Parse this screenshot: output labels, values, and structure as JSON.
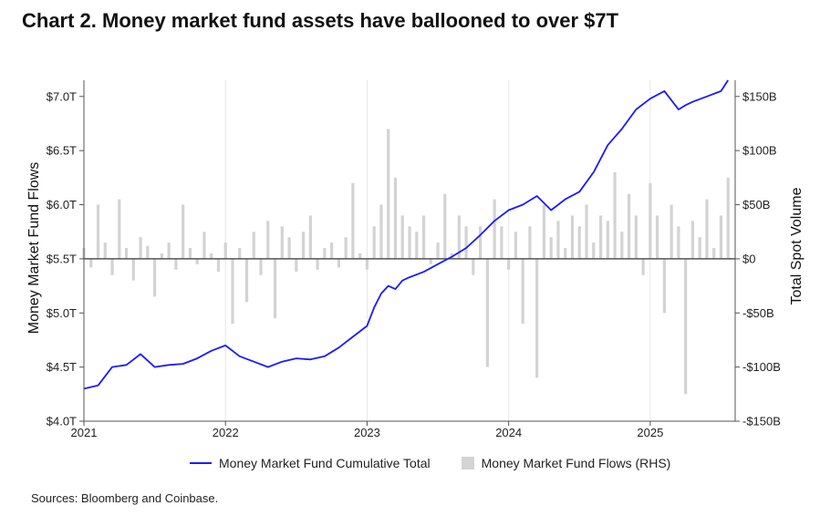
{
  "title": "Chart 2. Money market fund assets have ballooned to over $7T",
  "source": "Sources: Bloomberg and Coinbase.",
  "colors": {
    "line": "#1a1aff",
    "bars": "#d3d3d3",
    "zero_line": "#555555",
    "grid": "#e6e6e6"
  },
  "chart_data": {
    "type": "line+bar",
    "title": "Chart 2. Money market fund assets have ballooned to over $7T",
    "xlabel": "",
    "ylabel_left": "Money Market Fund Flows",
    "ylabel_right": "Total Spot Volume",
    "x_range": [
      2021.0,
      2025.6
    ],
    "x_ticks": [
      2021,
      2022,
      2023,
      2024,
      2025
    ],
    "x_tick_labels": [
      "2021",
      "2022",
      "2023",
      "2024",
      "2025"
    ],
    "y_left_range": [
      4.0,
      7.15
    ],
    "y_left_ticks": [
      4.0,
      4.5,
      5.0,
      5.5,
      6.0,
      6.5,
      7.0
    ],
    "y_left_tick_labels": [
      "$4.0T",
      "$4.5T",
      "$5.0T",
      "$5.5T",
      "$6.0T",
      "$6.5T",
      "$7.0T"
    ],
    "y_right_range": [
      -150,
      165
    ],
    "y_right_ticks": [
      -150,
      -100,
      -50,
      0,
      50,
      100,
      150
    ],
    "y_right_tick_labels": [
      "-$150B",
      "-$100B",
      "-$50B",
      "$0",
      "$50B",
      "$100B",
      "$150B"
    ],
    "grid": "vertical",
    "legend_position": "bottom",
    "series": [
      {
        "name": "Money Market Fund Cumulative Total",
        "axis": "left",
        "type": "line",
        "x": [
          2021.0,
          2021.1,
          2021.2,
          2021.3,
          2021.4,
          2021.5,
          2021.6,
          2021.7,
          2021.8,
          2021.9,
          2022.0,
          2022.1,
          2022.2,
          2022.3,
          2022.4,
          2022.5,
          2022.6,
          2022.7,
          2022.8,
          2022.9,
          2023.0,
          2023.05,
          2023.1,
          2023.15,
          2023.2,
          2023.25,
          2023.3,
          2023.4,
          2023.5,
          2023.6,
          2023.7,
          2023.8,
          2023.9,
          2024.0,
          2024.1,
          2024.2,
          2024.3,
          2024.35,
          2024.4,
          2024.5,
          2024.6,
          2024.7,
          2024.8,
          2024.9,
          2025.0,
          2025.1,
          2025.2,
          2025.25,
          2025.3,
          2025.4,
          2025.5,
          2025.55
        ],
        "values": [
          4.3,
          4.33,
          4.5,
          4.52,
          4.62,
          4.5,
          4.52,
          4.53,
          4.58,
          4.65,
          4.7,
          4.6,
          4.55,
          4.5,
          4.55,
          4.58,
          4.57,
          4.6,
          4.68,
          4.78,
          4.88,
          5.05,
          5.18,
          5.25,
          5.22,
          5.3,
          5.33,
          5.38,
          5.45,
          5.52,
          5.6,
          5.72,
          5.85,
          5.95,
          6.0,
          6.08,
          5.95,
          6.0,
          6.05,
          6.12,
          6.3,
          6.55,
          6.7,
          6.88,
          6.98,
          7.05,
          6.88,
          6.92,
          6.95,
          7.0,
          7.05,
          7.15
        ]
      },
      {
        "name": "Money Market Fund Flows (RHS)",
        "axis": "right",
        "type": "bar",
        "x": [
          2021.0,
          2021.05,
          2021.1,
          2021.15,
          2021.2,
          2021.25,
          2021.3,
          2021.35,
          2021.4,
          2021.45,
          2021.5,
          2021.55,
          2021.6,
          2021.65,
          2021.7,
          2021.75,
          2021.8,
          2021.85,
          2021.9,
          2021.95,
          2022.0,
          2022.05,
          2022.1,
          2022.15,
          2022.2,
          2022.25,
          2022.3,
          2022.35,
          2022.4,
          2022.45,
          2022.5,
          2022.55,
          2022.6,
          2022.65,
          2022.7,
          2022.75,
          2022.8,
          2022.85,
          2022.9,
          2022.95,
          2023.0,
          2023.05,
          2023.1,
          2023.15,
          2023.2,
          2023.25,
          2023.3,
          2023.35,
          2023.4,
          2023.45,
          2023.5,
          2023.55,
          2023.6,
          2023.65,
          2023.7,
          2023.75,
          2023.8,
          2023.85,
          2023.9,
          2023.95,
          2024.0,
          2024.05,
          2024.1,
          2024.15,
          2024.2,
          2024.25,
          2024.3,
          2024.35,
          2024.4,
          2024.45,
          2024.5,
          2024.55,
          2024.6,
          2024.65,
          2024.7,
          2024.75,
          2024.8,
          2024.85,
          2024.9,
          2024.95,
          2025.0,
          2025.05,
          2025.1,
          2025.15,
          2025.2,
          2025.25,
          2025.3,
          2025.35,
          2025.4,
          2025.45,
          2025.5,
          2025.55
        ],
        "values": [
          10,
          -8,
          50,
          15,
          -15,
          55,
          10,
          -20,
          20,
          12,
          -35,
          5,
          15,
          -10,
          50,
          10,
          -5,
          25,
          5,
          -12,
          15,
          -60,
          10,
          -40,
          25,
          -15,
          35,
          -55,
          30,
          20,
          -12,
          25,
          40,
          -10,
          10,
          15,
          -8,
          20,
          70,
          5,
          -10,
          30,
          50,
          120,
          75,
          40,
          30,
          25,
          40,
          -5,
          15,
          60,
          5,
          40,
          30,
          -15,
          30,
          -100,
          55,
          30,
          -10,
          25,
          -60,
          30,
          -110,
          50,
          20,
          35,
          10,
          40,
          30,
          50,
          15,
          40,
          35,
          80,
          25,
          60,
          40,
          -15,
          70,
          40,
          -50,
          50,
          30,
          -125,
          35,
          20,
          55,
          10,
          40,
          75
        ]
      }
    ]
  },
  "legend": {
    "line_label": "Money Market Fund Cumulative Total",
    "bar_label": "Money Market Fund Flows (RHS)"
  }
}
